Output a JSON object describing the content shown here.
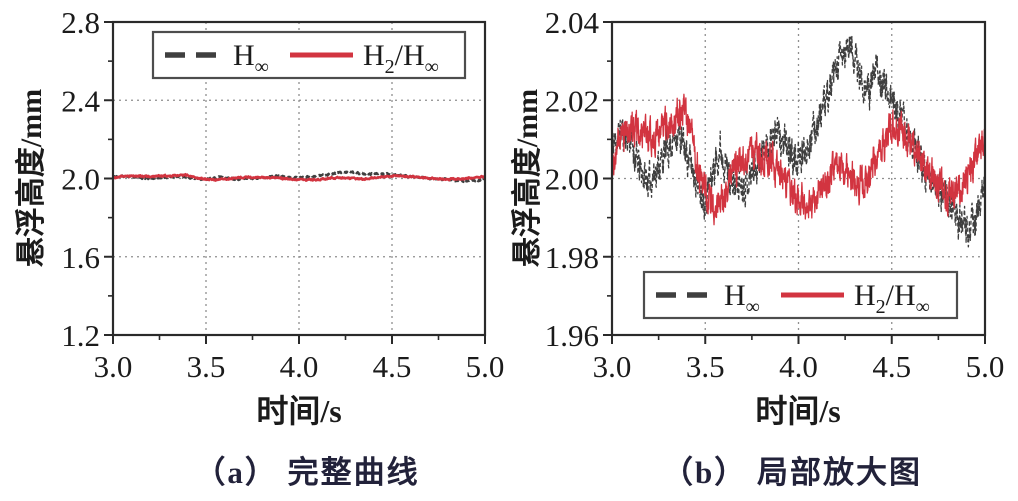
{
  "colors": {
    "h_inf_series": "#3f3f3f",
    "h2_hinf_series": "#d23440",
    "grid": "#8f8f8f",
    "axis": "#2a2a2a",
    "legend_border": "#4d4d4d",
    "tick_label": "#1b1b1b",
    "caption_text": "#22223a",
    "background": "#ffffff"
  },
  "chart_data": [
    {
      "type": "line",
      "caption": "（a） 完整曲线",
      "xlabel": "时间/s",
      "ylabel": "悬浮高度/mm",
      "xlim": [
        3.0,
        5.0
      ],
      "ylim": [
        1.2,
        2.8
      ],
      "xticks": {
        "values": [
          3.0,
          3.5,
          4.0,
          4.5,
          5.0
        ],
        "labels": [
          "3.0",
          "3.5",
          "4.0",
          "4.5",
          "5.0"
        ]
      },
      "yticks": {
        "values": [
          1.2,
          1.6,
          2.0,
          2.4,
          2.8
        ],
        "labels": [
          "1.2",
          "1.6",
          "2.0",
          "2.4",
          "2.8"
        ]
      },
      "grid": {
        "x": [
          3.5,
          4.0,
          4.5
        ],
        "y": [
          1.6,
          2.0,
          2.4
        ],
        "style": "dotted"
      },
      "legend": {
        "position": "top-center",
        "items": [
          {
            "name": "H_inf",
            "runs": [
              {
                "t": "H"
              },
              {
                "t": "∞",
                "sub": true
              }
            ],
            "style": "dashed",
            "color": "#3f3f3f"
          },
          {
            "name": "H2/H_inf",
            "runs": [
              {
                "t": "H"
              },
              {
                "t": "2",
                "sub": true
              },
              {
                "t": "/H"
              },
              {
                "t": "∞",
                "sub": true
              }
            ],
            "style": "solid",
            "color": "#d23440"
          }
        ]
      },
      "series": [
        {
          "name": "H∞",
          "color": "#3f3f3f",
          "line_style": "dashed",
          "noise_amp": 0.004,
          "seed": 11,
          "trend": [
            [
              3.0,
              2.008
            ],
            [
              3.05,
              2.012
            ],
            [
              3.1,
              2.01
            ],
            [
              3.15,
              2.002
            ],
            [
              3.2,
              1.999
            ],
            [
              3.28,
              2.006
            ],
            [
              3.35,
              2.012
            ],
            [
              3.42,
              2.004
            ],
            [
              3.5,
              1.995
            ],
            [
              3.58,
              2.008
            ],
            [
              3.65,
              1.998
            ],
            [
              3.72,
              1.999
            ],
            [
              3.8,
              2.006
            ],
            [
              3.88,
              2.012
            ],
            [
              3.93,
              2.008
            ],
            [
              4.0,
              2.004
            ],
            [
              4.08,
              2.012
            ],
            [
              4.15,
              2.02
            ],
            [
              4.22,
              2.03
            ],
            [
              4.28,
              2.034
            ],
            [
              4.33,
              2.026
            ],
            [
              4.38,
              2.022
            ],
            [
              4.42,
              2.028
            ],
            [
              4.5,
              2.02
            ],
            [
              4.6,
              2.01
            ],
            [
              4.7,
              2.0
            ],
            [
              4.8,
              1.995
            ],
            [
              4.9,
              1.986
            ],
            [
              4.96,
              1.99
            ],
            [
              5.0,
              2.0
            ]
          ]
        },
        {
          "name": "H2/H∞",
          "color": "#d23440",
          "line_style": "solid",
          "noise_amp": 0.004,
          "seed": 99,
          "trend": [
            [
              3.0,
              2.004
            ],
            [
              3.05,
              2.011
            ],
            [
              3.12,
              2.013
            ],
            [
              3.2,
              2.01
            ],
            [
              3.28,
              2.013
            ],
            [
              3.35,
              2.016
            ],
            [
              3.4,
              2.017
            ],
            [
              3.47,
              2.0
            ],
            [
              3.53,
              1.993
            ],
            [
              3.6,
              1.996
            ],
            [
              3.68,
              2.004
            ],
            [
              3.75,
              2.007
            ],
            [
              3.82,
              2.006
            ],
            [
              3.9,
              2.001
            ],
            [
              3.97,
              1.996
            ],
            [
              4.05,
              1.993
            ],
            [
              4.12,
              1.997
            ],
            [
              4.2,
              2.003
            ],
            [
              4.28,
              2.001
            ],
            [
              4.35,
              1.997
            ],
            [
              4.43,
              2.007
            ],
            [
              4.52,
              2.014
            ],
            [
              4.58,
              2.011
            ],
            [
              4.65,
              2.005
            ],
            [
              4.72,
              2.0
            ],
            [
              4.8,
              1.996
            ],
            [
              4.87,
              1.997
            ],
            [
              4.94,
              2.004
            ],
            [
              5.0,
              2.011
            ]
          ]
        }
      ]
    },
    {
      "type": "line",
      "caption": "（b） 局部放大图",
      "xlabel": "时间/s",
      "ylabel": "悬浮高度/mm",
      "xlim": [
        3.0,
        5.0
      ],
      "ylim": [
        1.96,
        2.04
      ],
      "xticks": {
        "values": [
          3.0,
          3.5,
          4.0,
          4.5,
          5.0
        ],
        "labels": [
          "3.0",
          "3.5",
          "4.0",
          "4.5",
          "5.0"
        ]
      },
      "yticks": {
        "values": [
          1.96,
          1.98,
          2.0,
          2.02,
          2.04
        ],
        "labels": [
          "1.96",
          "1.98",
          "2.00",
          "2.02",
          "2.04"
        ]
      },
      "grid": {
        "x": [
          3.5,
          4.0,
          4.5
        ],
        "y": [
          1.98,
          2.0,
          2.02
        ],
        "style": "dotted"
      },
      "legend": {
        "position": "bottom-center",
        "items": [
          {
            "name": "H_inf",
            "runs": [
              {
                "t": "H"
              },
              {
                "t": "∞",
                "sub": true
              }
            ],
            "style": "dashed",
            "color": "#3f3f3f"
          },
          {
            "name": "H2/H_inf",
            "runs": [
              {
                "t": "H"
              },
              {
                "t": "2",
                "sub": true
              },
              {
                "t": "/H"
              },
              {
                "t": "∞",
                "sub": true
              }
            ],
            "style": "solid",
            "color": "#d23440"
          }
        ]
      },
      "series": [
        {
          "name": "H∞",
          "color": "#3f3f3f",
          "line_style": "dashed",
          "noise_amp": 0.004,
          "seed": 11,
          "trend": [
            [
              3.0,
              2.008
            ],
            [
              3.05,
              2.012
            ],
            [
              3.1,
              2.01
            ],
            [
              3.15,
              2.002
            ],
            [
              3.2,
              1.999
            ],
            [
              3.28,
              2.006
            ],
            [
              3.35,
              2.012
            ],
            [
              3.42,
              2.004
            ],
            [
              3.5,
              1.995
            ],
            [
              3.58,
              2.008
            ],
            [
              3.65,
              1.998
            ],
            [
              3.72,
              1.999
            ],
            [
              3.8,
              2.006
            ],
            [
              3.88,
              2.012
            ],
            [
              3.93,
              2.008
            ],
            [
              4.0,
              2.004
            ],
            [
              4.08,
              2.012
            ],
            [
              4.15,
              2.02
            ],
            [
              4.22,
              2.03
            ],
            [
              4.28,
              2.034
            ],
            [
              4.33,
              2.026
            ],
            [
              4.38,
              2.022
            ],
            [
              4.42,
              2.028
            ],
            [
              4.5,
              2.02
            ],
            [
              4.6,
              2.01
            ],
            [
              4.7,
              2.0
            ],
            [
              4.8,
              1.995
            ],
            [
              4.9,
              1.986
            ],
            [
              4.96,
              1.99
            ],
            [
              5.0,
              2.0
            ]
          ]
        },
        {
          "name": "H2/H∞",
          "color": "#d23440",
          "line_style": "solid",
          "noise_amp": 0.004,
          "seed": 99,
          "trend": [
            [
              3.0,
              2.004
            ],
            [
              3.05,
              2.011
            ],
            [
              3.12,
              2.013
            ],
            [
              3.2,
              2.01
            ],
            [
              3.28,
              2.013
            ],
            [
              3.35,
              2.016
            ],
            [
              3.4,
              2.017
            ],
            [
              3.47,
              2.0
            ],
            [
              3.53,
              1.993
            ],
            [
              3.6,
              1.996
            ],
            [
              3.68,
              2.004
            ],
            [
              3.75,
              2.007
            ],
            [
              3.82,
              2.006
            ],
            [
              3.9,
              2.001
            ],
            [
              3.97,
              1.996
            ],
            [
              4.05,
              1.993
            ],
            [
              4.12,
              1.997
            ],
            [
              4.2,
              2.003
            ],
            [
              4.28,
              2.001
            ],
            [
              4.35,
              1.997
            ],
            [
              4.43,
              2.007
            ],
            [
              4.52,
              2.014
            ],
            [
              4.58,
              2.011
            ],
            [
              4.65,
              2.005
            ],
            [
              4.72,
              2.0
            ],
            [
              4.8,
              1.996
            ],
            [
              4.87,
              1.997
            ],
            [
              4.94,
              2.004
            ],
            [
              5.0,
              2.011
            ]
          ]
        }
      ]
    }
  ]
}
